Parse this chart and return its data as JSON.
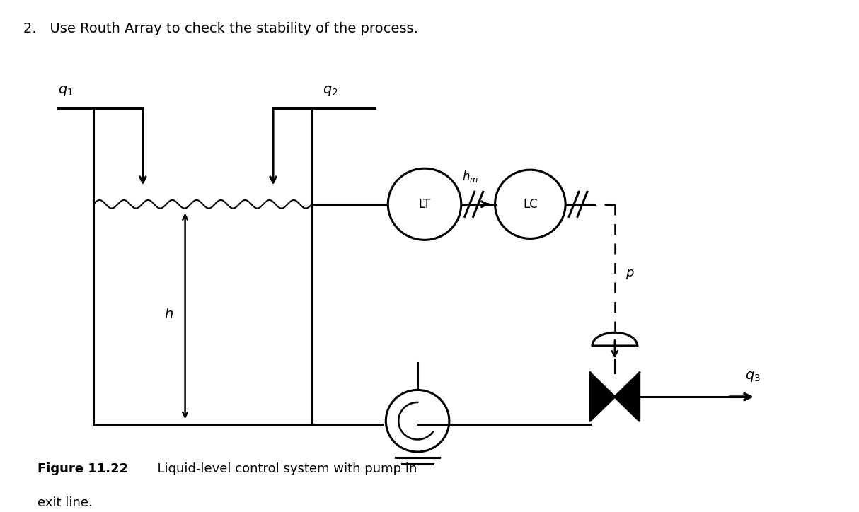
{
  "title": "2.   Use Routh Array to check the stability of the process.",
  "figure_caption_bold": "Figure 11.22",
  "figure_caption_normal": "  Liquid-level control system with pump in\n  exit line.",
  "bg_color": "#ffffff",
  "line_color": "#000000"
}
